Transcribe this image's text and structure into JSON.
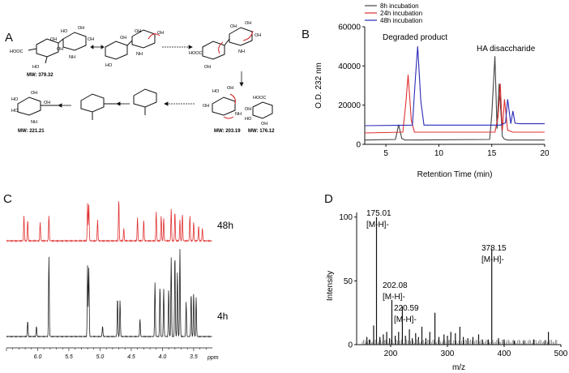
{
  "panels": {
    "a": {
      "letter": "A",
      "structures": [
        {
          "mw": "MW: 379.32",
          "labels": [
            "HOOC",
            "HO",
            "OH",
            "NH",
            "HO",
            "OH",
            "OH",
            "OH"
          ]
        },
        {
          "mw": "",
          "labels": [
            "OH",
            "NH",
            "OH",
            "OH",
            "HO"
          ]
        },
        {
          "mw": "",
          "labels": [
            "HOOC",
            "OH",
            "NH",
            "OH",
            "OH",
            "OH"
          ]
        },
        {
          "mw": "MW: 203.19",
          "labels": [
            "HO",
            "OH",
            "NH",
            "OH"
          ]
        },
        {
          "mw": "MW: 176.12",
          "labels": [
            "HOOC",
            "HO",
            "OH",
            "OH"
          ]
        },
        {
          "mw": "MW: 221.21",
          "labels": [
            "OH",
            "HO",
            "HO",
            "NH",
            "OH"
          ]
        }
      ]
    },
    "b": {
      "letter": "B",
      "legend": [
        "8h incubation",
        "24h incubation",
        "48h incubation"
      ],
      "annotations": [
        "Degraded product",
        "HA disaccharide"
      ]
    },
    "c": {
      "letter": "C",
      "trace_labels": [
        "48h",
        "4h"
      ]
    },
    "d": {
      "letter": "D",
      "peak_labels": [
        {
          "mz": "175.01",
          "ion": "[M-H]-"
        },
        {
          "mz": "202.08",
          "ion": "[M-H]-"
        },
        {
          "mz": "220.59",
          "ion": "[M-H]-"
        },
        {
          "mz": "378.15",
          "ion": "[M-H]-"
        }
      ]
    }
  },
  "chart_data": [
    {
      "id": "B",
      "type": "line",
      "xlabel": "Retention Time (min)",
      "ylabel": "O.D. 232 nm",
      "xlim": [
        3,
        20
      ],
      "ylim": [
        0,
        60000
      ],
      "xticks": [
        "5",
        "10",
        "15",
        "20"
      ],
      "yticks": [
        "0",
        "20000",
        "40000",
        "60000"
      ],
      "colors": [
        "#444444",
        "#e03030",
        "#2a2ab8"
      ],
      "series": [
        {
          "name": "8h incubation",
          "x": [
            3,
            5.9,
            6.2,
            6.5,
            6.8,
            14.8,
            15.0,
            15.3,
            15.5,
            15.7,
            16.0,
            16.2,
            16.5,
            20
          ],
          "y": [
            2200,
            2500,
            10000,
            3000,
            2200,
            2500,
            15000,
            45000,
            8000,
            31000,
            4000,
            2600,
            2200,
            2200
          ]
        },
        {
          "name": "24h incubation",
          "x": [
            3,
            6.6,
            6.9,
            7.1,
            7.4,
            7.7,
            15.3,
            15.6,
            15.8,
            16.0,
            16.2,
            16.5,
            17,
            20
          ],
          "y": [
            5800,
            6200,
            22000,
            35500,
            12000,
            6200,
            6200,
            14000,
            31000,
            7000,
            23000,
            7200,
            6200,
            6200
          ]
        },
        {
          "name": "48h incubation",
          "x": [
            3,
            7.5,
            7.8,
            8.0,
            8.3,
            8.6,
            15.8,
            16.3,
            16.5,
            16.8,
            17.0,
            17.2,
            17.6,
            20
          ],
          "y": [
            9500,
            9800,
            35000,
            50000,
            22000,
            9800,
            9800,
            11000,
            23000,
            10500,
            17000,
            10800,
            10500,
            10500
          ]
        }
      ]
    },
    {
      "id": "C",
      "type": "line",
      "xlabel": "ppm",
      "xlim": [
        6.5,
        3.2
      ],
      "xticks": [
        "6.0",
        "5.5",
        "5.0",
        "4.5",
        "4.0",
        "3.5"
      ],
      "colors": [
        "#e03030",
        "#222222"
      ],
      "series": [
        {
          "name": "48h",
          "peaks_ppm": [
            6.22,
            6.16,
            5.96,
            5.82,
            5.2,
            5.18,
            5.04,
            4.7,
            4.62,
            4.4,
            4.3,
            4.1,
            4.02,
            3.98,
            3.86,
            3.8,
            3.72,
            3.68,
            3.56,
            3.5,
            3.42,
            3.36
          ],
          "heights": [
            0.6,
            0.5,
            0.45,
            0.6,
            0.9,
            0.85,
            0.5,
            1.0,
            0.3,
            0.55,
            0.5,
            0.7,
            0.6,
            0.55,
            0.75,
            0.7,
            0.5,
            0.65,
            0.6,
            0.45,
            0.35,
            0.3
          ]
        },
        {
          "name": "4h",
          "peaks_ppm": [
            6.16,
            6.02,
            5.82,
            5.2,
            5.18,
            4.96,
            4.72,
            4.68,
            4.36,
            4.12,
            4.04,
            3.98,
            3.9,
            3.86,
            3.8,
            3.76,
            3.72,
            3.62,
            3.54,
            3.5,
            3.46
          ],
          "heights": [
            0.18,
            0.12,
            0.92,
            0.82,
            0.78,
            0.12,
            0.45,
            0.42,
            0.2,
            0.62,
            0.58,
            0.55,
            0.55,
            0.9,
            0.95,
            0.75,
            1.0,
            0.4,
            0.5,
            0.5,
            0.45
          ]
        }
      ]
    },
    {
      "id": "D",
      "type": "bar",
      "xlabel": "m/z",
      "ylabel": "Intensity",
      "xlim": [
        140,
        500
      ],
      "ylim": [
        0,
        110
      ],
      "xticks": [
        "200",
        "300",
        "400",
        "500"
      ],
      "yticks": [
        "0",
        "50",
        "100"
      ],
      "mz": [
        158,
        163,
        170,
        175.01,
        181,
        187,
        193,
        198,
        202.08,
        208,
        214,
        220.59,
        226,
        233,
        238,
        244,
        249,
        255,
        262,
        269,
        278,
        285,
        294,
        300,
        306,
        314,
        322,
        328,
        336,
        345,
        355,
        362,
        372,
        378.15,
        390,
        400,
        418,
        435,
        452,
        472,
        478
      ],
      "values": [
        6,
        4,
        15,
        100,
        6,
        8,
        10,
        5,
        35,
        7,
        10,
        30,
        7,
        12,
        5,
        9,
        6,
        14,
        5,
        10,
        25,
        6,
        8,
        7,
        10,
        9,
        14,
        6,
        5,
        6,
        8,
        4,
        4,
        75,
        5,
        4,
        3,
        3,
        4,
        3,
        10
      ]
    }
  ]
}
